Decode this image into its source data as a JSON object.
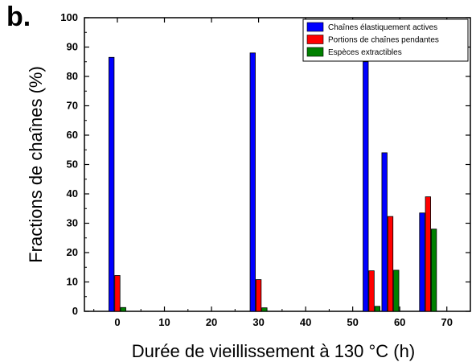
{
  "panel_label": "b.",
  "chart_data": {
    "type": "bar",
    "x": [
      0,
      30,
      54,
      58,
      66
    ],
    "series": [
      {
        "name": "Chaînes élastiquement actives",
        "color": "#0000ff",
        "values": [
          86.5,
          88,
          85,
          54,
          33.5
        ]
      },
      {
        "name": "Portions de chaînes pendantes",
        "color": "#ff0000",
        "values": [
          12.2,
          10.8,
          13.8,
          32.3,
          39
        ]
      },
      {
        "name": "Espèces extractibles",
        "color": "#008000",
        "values": [
          1.3,
          1.2,
          1.7,
          14,
          28
        ]
      }
    ],
    "xlabel": "Durée de vieillissement à 130 °C (h)",
    "ylabel": "Fractions de chaînes (%)",
    "xlim": [
      -7,
      75
    ],
    "ylim": [
      0,
      100
    ],
    "x_ticks": [
      0,
      10,
      20,
      30,
      40,
      50,
      60,
      70
    ],
    "y_ticks": [
      0,
      10,
      20,
      30,
      40,
      50,
      60,
      70,
      80,
      90,
      100
    ],
    "legend_position": "top-right",
    "grid": false
  }
}
